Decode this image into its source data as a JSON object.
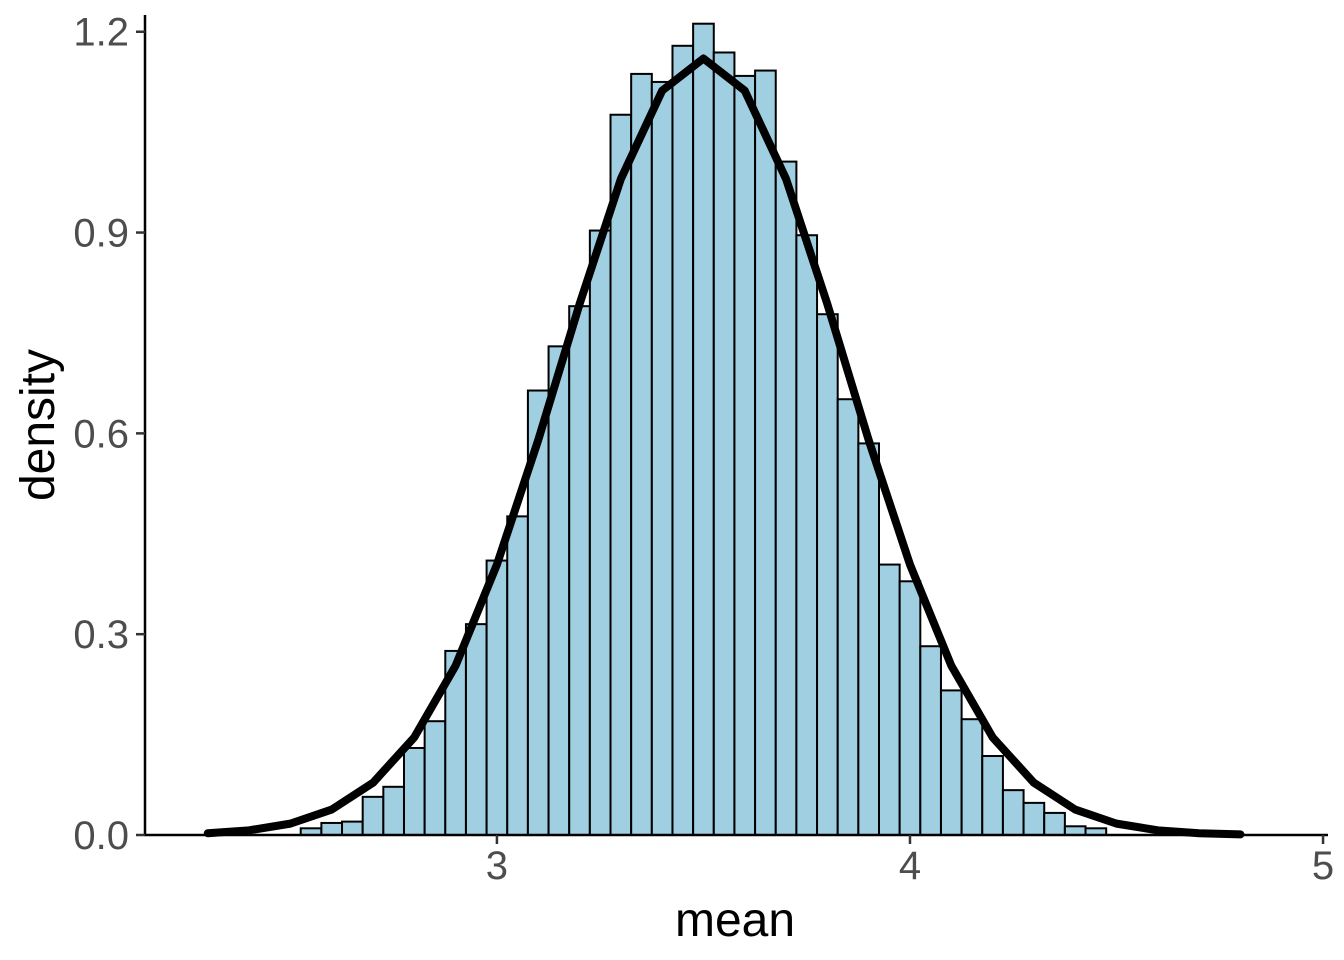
{
  "chart_data": {
    "type": "histogram",
    "xlabel": "mean",
    "ylabel": "density",
    "bins": [
      2.525,
      2.575,
      2.625,
      2.675,
      2.725,
      2.775,
      2.825,
      2.875,
      2.925,
      2.975,
      3.025,
      3.075,
      3.125,
      3.175,
      3.225,
      3.275,
      3.325,
      3.375,
      3.425,
      3.475,
      3.525,
      3.575,
      3.625,
      3.675,
      3.725,
      3.775,
      3.825,
      3.875,
      3.925,
      3.975,
      4.025,
      4.075,
      4.125,
      4.175,
      4.225,
      4.275,
      4.325,
      4.375,
      4.425,
      4.475
    ],
    "values": [
      0.01,
      0.018,
      0.02,
      0.057,
      0.072,
      0.13,
      0.17,
      0.275,
      0.315,
      0.41,
      0.476,
      0.664,
      0.73,
      0.79,
      0.903,
      1.076,
      1.137,
      1.125,
      1.179,
      1.212,
      1.169,
      1.134,
      1.142,
      1.006,
      0.896,
      0.778,
      0.651,
      0.585,
      0.404,
      0.379,
      0.282,
      0.216,
      0.173,
      0.118,
      0.067,
      0.048,
      0.033,
      0.013,
      0.01
    ],
    "color": "#a0cfe2",
    "curve": {
      "color": "#000000",
      "x": [
        2.3,
        2.4,
        2.5,
        2.6,
        2.7,
        2.8,
        2.9,
        3.0,
        3.1,
        3.2,
        3.3,
        3.4,
        3.5,
        3.6,
        3.7,
        3.8,
        3.9,
        4.0,
        4.1,
        4.2,
        4.3,
        4.4,
        4.5,
        4.6,
        4.7,
        4.8
      ],
      "y": [
        0.0026,
        0.007,
        0.017,
        0.038,
        0.078,
        0.146,
        0.253,
        0.404,
        0.59,
        0.793,
        0.98,
        1.112,
        1.16,
        1.112,
        0.98,
        0.793,
        0.59,
        0.404,
        0.253,
        0.146,
        0.078,
        0.038,
        0.017,
        0.007,
        0.0026,
        0.0009
      ]
    },
    "xlim": [
      2.148,
      5.012
    ],
    "xticks": [
      3,
      4,
      5
    ],
    "ylim": [
      0,
      1.225
    ],
    "yticks": [
      {
        "value": 0,
        "label": "0.0"
      },
      0.3,
      0.6,
      0.9,
      1.2
    ]
  }
}
